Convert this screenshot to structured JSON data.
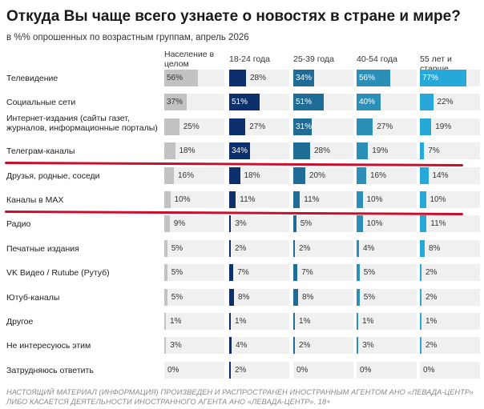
{
  "title": "Откуда Вы чаще всего узнаете о новостях в стране и мире?",
  "subtitle": "в %% опрошенных по возрастным группам, апрель 2026",
  "footer": "НАСТОЯЩИЙ МАТЕРИАЛ (ИНФОРМАЦИЯ) ПРОИЗВЕДЕН И РАСПРОСТРАНЕН ИНОСТРАННЫМ АГЕНТОМ АНО «ЛЕВАДА-ЦЕНТР» ЛИБО КАСАЕТСЯ ДЕЯТЕЛЬНОСТИ ИНОСТРАННОГО АГЕНТА АНО «ЛЕВАДА-ЦЕНТР». 18+",
  "colors": {
    "track": "#f0f0f0",
    "highlight": "#c8102e",
    "series": [
      "#c2c2c2",
      "#0d2f6b",
      "#1f6d96",
      "#2c8fb8",
      "#26a8d8"
    ]
  },
  "chart_data": {
    "type": "bar",
    "orientation": "horizontal",
    "xlim": [
      0,
      100
    ],
    "categories": [
      "Телевидение",
      "Социальные сети",
      "Интернет-издания (сайты газет, журналов, информационные порталы)",
      "Телеграм-каналы",
      "Друзья, родные, соседи",
      "Каналы в MAX",
      "Радио",
      "Печатные издания",
      "VK Видео / Rutube (Рутуб)",
      "Ютуб-каналы",
      "Другое",
      "Не интересуюсь этим",
      "Затрудняюсь ответить"
    ],
    "highlighted_categories": [
      "Телеграм-каналы",
      "Каналы в MAX"
    ],
    "series": [
      {
        "name": "Население в целом",
        "values": [
          56,
          37,
          25,
          18,
          16,
          10,
          9,
          5,
          5,
          5,
          1,
          3,
          0
        ]
      },
      {
        "name": "18-24 года",
        "values": [
          28,
          51,
          27,
          34,
          18,
          11,
          3,
          2,
          7,
          8,
          1,
          4,
          2
        ]
      },
      {
        "name": "25-39 года",
        "values": [
          34,
          51,
          31,
          28,
          20,
          11,
          5,
          2,
          7,
          8,
          1,
          2,
          0
        ]
      },
      {
        "name": "40-54 года",
        "values": [
          56,
          40,
          27,
          19,
          16,
          10,
          10,
          4,
          5,
          5,
          1,
          3,
          0
        ]
      },
      {
        "name": "55 лет и старше",
        "values": [
          77,
          22,
          19,
          7,
          14,
          10,
          11,
          8,
          2,
          2,
          1,
          2,
          0
        ]
      }
    ]
  }
}
